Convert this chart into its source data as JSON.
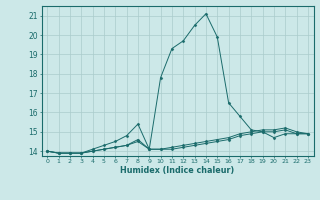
{
  "title": "",
  "xlabel": "Humidex (Indice chaleur)",
  "ylabel": "",
  "background_color": "#cce8e8",
  "grid_color": "#aacccc",
  "line_color": "#1a6b6b",
  "x_data": [
    0,
    1,
    2,
    3,
    4,
    5,
    6,
    7,
    8,
    9,
    10,
    11,
    12,
    13,
    14,
    15,
    16,
    17,
    18,
    19,
    20,
    21,
    22,
    23
  ],
  "series1": [
    14.0,
    13.9,
    13.9,
    13.9,
    14.0,
    14.1,
    14.2,
    14.3,
    14.6,
    14.1,
    14.1,
    14.1,
    14.2,
    14.3,
    14.4,
    14.5,
    14.6,
    14.8,
    14.9,
    15.0,
    15.0,
    15.1,
    14.9,
    14.9
  ],
  "series2": [
    14.0,
    13.9,
    13.9,
    13.9,
    14.1,
    14.3,
    14.5,
    14.8,
    15.4,
    14.1,
    17.8,
    19.3,
    19.7,
    20.5,
    21.1,
    19.9,
    16.5,
    15.8,
    15.1,
    15.0,
    14.7,
    14.9,
    14.9,
    14.9
  ],
  "series3": [
    14.0,
    13.9,
    13.9,
    13.9,
    14.0,
    14.1,
    14.2,
    14.3,
    14.5,
    14.1,
    14.1,
    14.2,
    14.3,
    14.4,
    14.5,
    14.6,
    14.7,
    14.9,
    15.0,
    15.1,
    15.1,
    15.2,
    15.0,
    14.9
  ],
  "ylim": [
    13.75,
    21.5
  ],
  "xlim": [
    -0.5,
    23.5
  ],
  "yticks": [
    14,
    15,
    16,
    17,
    18,
    19,
    20,
    21
  ],
  "xticks": [
    0,
    1,
    2,
    3,
    4,
    5,
    6,
    7,
    8,
    9,
    10,
    11,
    12,
    13,
    14,
    15,
    16,
    17,
    18,
    19,
    20,
    21,
    22,
    23
  ],
  "xlabel_fontsize": 5.8,
  "ytick_fontsize": 5.5,
  "xtick_fontsize": 4.5
}
